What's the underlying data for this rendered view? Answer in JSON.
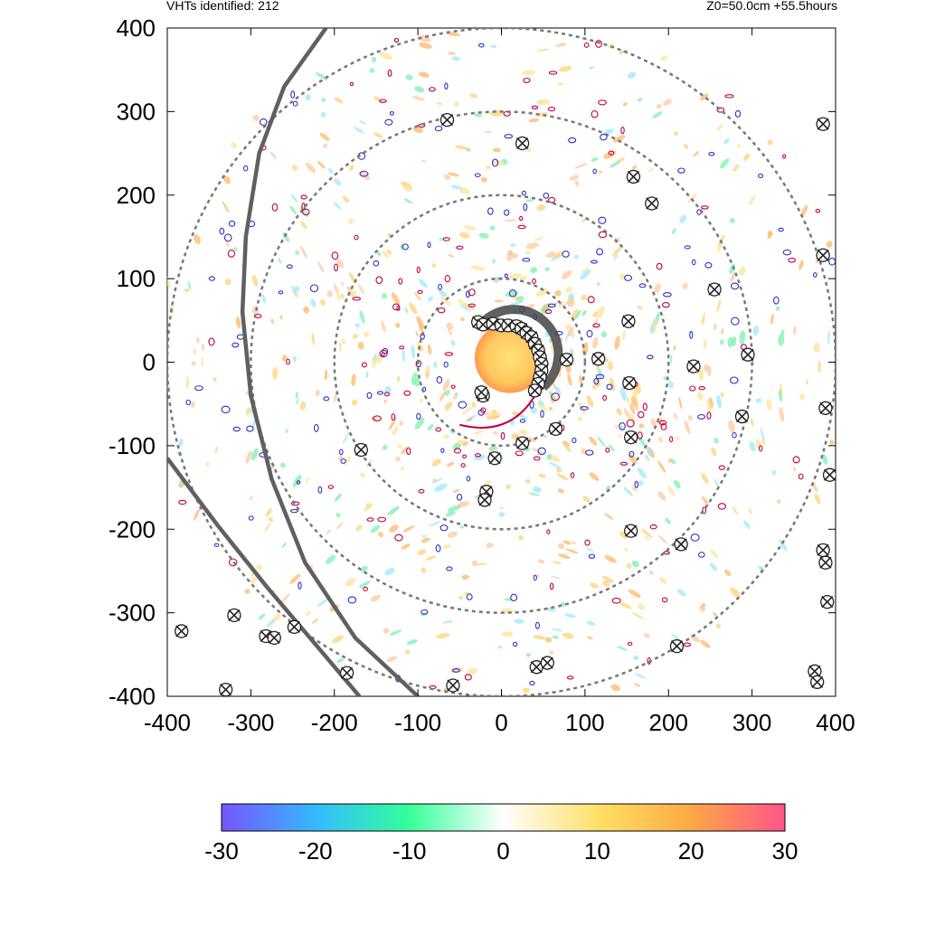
{
  "header": {
    "left_text": "VHTs identified: 212",
    "right_text": "Z0=50.0cm  +55.5hours"
  },
  "chart_data": {
    "type": "heatmap",
    "title": "",
    "xlabel": "",
    "ylabel": "",
    "xlim": [
      -400,
      400
    ],
    "ylim": [
      -400,
      400
    ],
    "x_ticks": [
      -400,
      -300,
      -200,
      -100,
      0,
      100,
      200,
      300,
      400
    ],
    "y_ticks": [
      -400,
      -300,
      -200,
      -100,
      0,
      100,
      200,
      300,
      400
    ],
    "vhts_identified": 212,
    "range_rings_radius": [
      100,
      200,
      300,
      400
    ],
    "core": {
      "center": [
        10,
        5
      ],
      "radius": 42
    },
    "colorbar": {
      "min": -30,
      "max": 30,
      "ticks": [
        -30,
        -20,
        -10,
        0,
        10,
        20,
        30
      ],
      "colors": [
        "#7755ff",
        "#33bbff",
        "#33ff99",
        "#ffffff",
        "#ffe066",
        "#ffaa44",
        "#ff5588"
      ]
    },
    "vht_markers": [
      [
        -28,
        48
      ],
      [
        -22,
        45
      ],
      [
        -10,
        46
      ],
      [
        0,
        44
      ],
      [
        8,
        44
      ],
      [
        18,
        43
      ],
      [
        24,
        40
      ],
      [
        30,
        35
      ],
      [
        36,
        30
      ],
      [
        40,
        22
      ],
      [
        44,
        14
      ],
      [
        46,
        6
      ],
      [
        48,
        -2
      ],
      [
        48,
        -10
      ],
      [
        46,
        -18
      ],
      [
        44,
        -26
      ],
      [
        40,
        -34
      ],
      [
        -22,
        -40
      ],
      [
        -24,
        -36
      ],
      [
        78,
        3
      ],
      [
        116,
        4
      ],
      [
        152,
        49
      ],
      [
        153,
        -25
      ],
      [
        -65,
        290
      ],
      [
        25,
        262
      ],
      [
        158,
        222
      ],
      [
        180,
        190
      ],
      [
        385,
        285
      ],
      [
        385,
        128
      ],
      [
        255,
        87
      ],
      [
        295,
        9
      ],
      [
        230,
        -5
      ],
      [
        288,
        -65
      ],
      [
        388,
        -55
      ],
      [
        393,
        -135
      ],
      [
        155,
        -90
      ],
      [
        65,
        -80
      ],
      [
        25,
        -97
      ],
      [
        -8,
        -115
      ],
      [
        -168,
        -105
      ],
      [
        -18,
        -155
      ],
      [
        -20,
        -165
      ],
      [
        155,
        -202
      ],
      [
        215,
        -218
      ],
      [
        385,
        -225
      ],
      [
        388,
        -240
      ],
      [
        390,
        -287
      ],
      [
        375,
        -370
      ],
      [
        378,
        -383
      ],
      [
        -320,
        -303
      ],
      [
        -383,
        -322
      ],
      [
        -282,
        -328
      ],
      [
        -272,
        -330
      ],
      [
        -248,
        -317
      ],
      [
        -185,
        -372
      ],
      [
        -330,
        -392
      ],
      [
        -58,
        -387
      ],
      [
        42,
        -365
      ],
      [
        55,
        -360
      ],
      [
        210,
        -340
      ]
    ],
    "dark_arcs": [
      {
        "name": "arc-1",
        "points": [
          [
            -210,
            400
          ],
          [
            -260,
            330
          ],
          [
            -290,
            250
          ],
          [
            -306,
            150
          ],
          [
            -310,
            60
          ],
          [
            -300,
            -40
          ],
          [
            -275,
            -140
          ],
          [
            -235,
            -240
          ],
          [
            -175,
            -330
          ],
          [
            -100,
            -400
          ]
        ]
      },
      {
        "name": "arc-2",
        "points": [
          [
            -400,
            -115
          ],
          [
            -340,
            -195
          ],
          [
            -280,
            -270
          ],
          [
            -225,
            -335
          ],
          [
            -170,
            -400
          ]
        ]
      }
    ]
  }
}
